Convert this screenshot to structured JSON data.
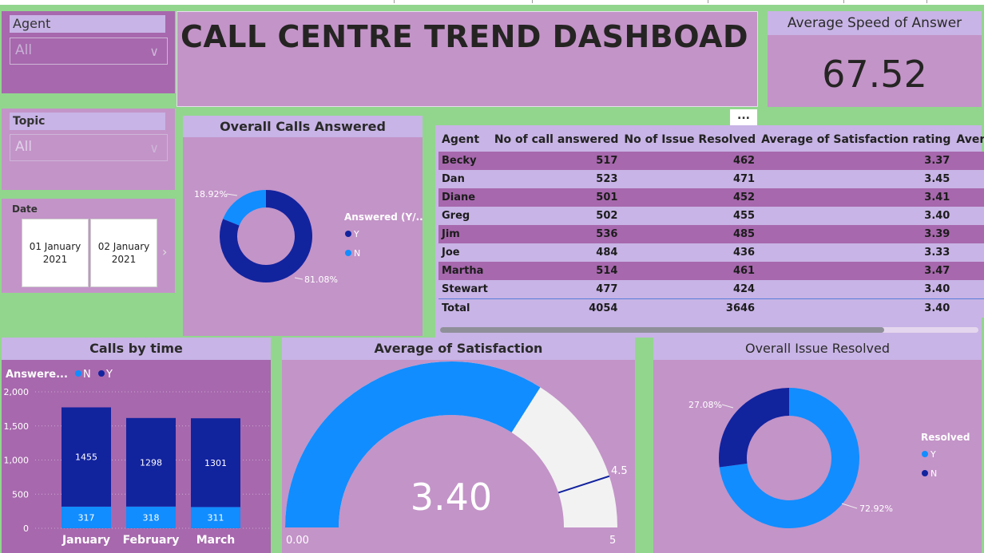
{
  "dashboard_title": "CALL CENTRE TREND DASHBOAD",
  "slicers": {
    "agent": {
      "label": "Agent",
      "value": "All"
    },
    "topic": {
      "label": "Topic",
      "value": "All"
    },
    "date": {
      "label": "Date",
      "start": "01 January 2021",
      "end": "02 January 2021"
    }
  },
  "kpi": {
    "title": "Average Speed of Answer",
    "value": "67.52"
  },
  "more_options": "...",
  "calls_answered": {
    "title": "Overall Calls Answered",
    "legend_title": "Answered (Y/...",
    "legend": [
      "Y",
      "N"
    ],
    "labels": {
      "y": "81.08%",
      "n": "18.92%"
    },
    "colors": {
      "y": "#12239e",
      "n": "#118dff"
    }
  },
  "table": {
    "headers": [
      "Agent",
      "No of call answered",
      "No of Issue Resolved",
      "Average of Satisfaction rating",
      "Average of"
    ],
    "rows": [
      [
        "Becky",
        "517",
        "462",
        "3.37"
      ],
      [
        "Dan",
        "523",
        "471",
        "3.45"
      ],
      [
        "Diane",
        "501",
        "452",
        "3.41"
      ],
      [
        "Greg",
        "502",
        "455",
        "3.40"
      ],
      [
        "Jim",
        "536",
        "485",
        "3.39"
      ],
      [
        "Joe",
        "484",
        "436",
        "3.33"
      ],
      [
        "Martha",
        "514",
        "461",
        "3.47"
      ],
      [
        "Stewart",
        "477",
        "424",
        "3.40"
      ]
    ],
    "total": [
      "Total",
      "4054",
      "3646",
      "3.40"
    ]
  },
  "calls_by_time": {
    "title": "Calls by time",
    "legend_title": "Answere...",
    "legend": [
      "N",
      "Y"
    ],
    "y_ticks": [
      "2,000",
      "1,500",
      "1,000",
      "500",
      "0"
    ]
  },
  "satisfaction": {
    "title": "Average of Satisfaction",
    "value": "3.40",
    "min_label": "0.00",
    "max_label": "5",
    "target_label": "4.5"
  },
  "issue_resolved": {
    "title": "Overall Issue Resolved",
    "legend_title": "Resolved",
    "legend": [
      "Y",
      "N"
    ],
    "labels": {
      "y": "72.92%",
      "n": "27.08%"
    }
  },
  "chart_data": [
    {
      "type": "pie",
      "title": "Overall Calls Answered",
      "categories": [
        "Y",
        "N"
      ],
      "values": [
        81.08,
        18.92
      ],
      "legend_title": "Answered (Y/...",
      "colors": [
        "#12239e",
        "#118dff"
      ]
    },
    {
      "type": "bar",
      "title": "Calls by time",
      "categories": [
        "January",
        "February",
        "March"
      ],
      "series": [
        {
          "name": "N",
          "values": [
            317,
            318,
            311
          ],
          "color": "#118dff"
        },
        {
          "name": "Y",
          "values": [
            1455,
            1298,
            1301
          ],
          "color": "#12239e"
        }
      ],
      "stacked": true,
      "ylim": [
        0,
        2000
      ],
      "y_ticks": [
        0,
        500,
        1000,
        1500,
        2000
      ],
      "legend_title": "Answere..."
    },
    {
      "type": "gauge",
      "title": "Average of Satisfaction",
      "value": 3.4,
      "min": 0,
      "max": 5,
      "target": 4.5,
      "colors": {
        "fill": "#118dff",
        "track": "#f2f2f2",
        "target": "#12239e"
      }
    },
    {
      "type": "pie",
      "title": "Overall Issue Resolved",
      "categories": [
        "Y",
        "N"
      ],
      "values": [
        72.92,
        27.08
      ],
      "legend_title": "Resolved",
      "colors": [
        "#118dff",
        "#12239e"
      ]
    }
  ]
}
